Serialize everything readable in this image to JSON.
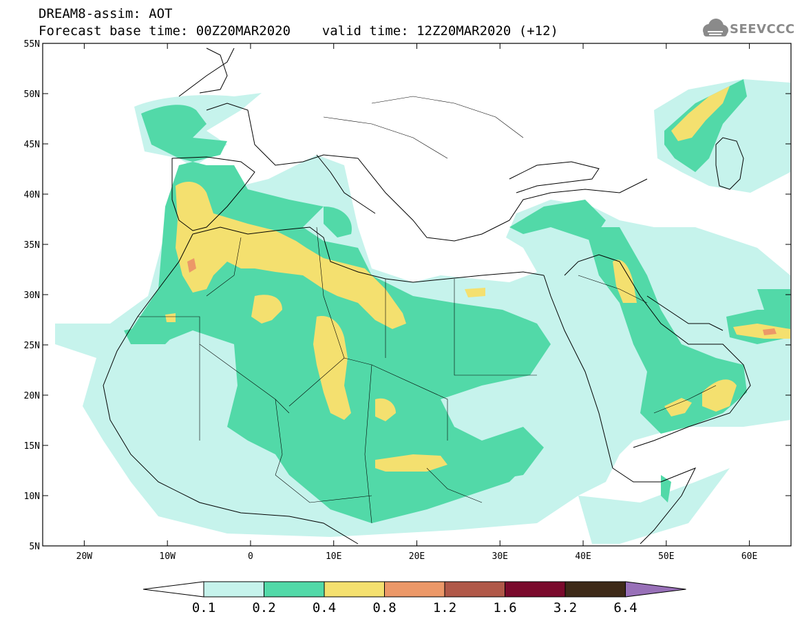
{
  "header": {
    "title_line1": "DREAM8-assim: AOT",
    "title_line2": "Forecast base time: 00Z20MAR2020    valid time: 12Z20MAR2020 (+12)",
    "logo_text": "SEEVCCC"
  },
  "icons": {
    "logo": "cloud-icon"
  },
  "map": {
    "lon_range": [
      -25,
      65
    ],
    "lat_range": [
      5,
      55
    ],
    "lon_ticks": [
      {
        "value": -20,
        "label": "20W"
      },
      {
        "value": -10,
        "label": "10W"
      },
      {
        "value": 0,
        "label": "0"
      },
      {
        "value": 10,
        "label": "10E"
      },
      {
        "value": 20,
        "label": "20E"
      },
      {
        "value": 30,
        "label": "30E"
      },
      {
        "value": 40,
        "label": "40E"
      },
      {
        "value": 50,
        "label": "50E"
      },
      {
        "value": 60,
        "label": "60E"
      }
    ],
    "lat_ticks": [
      {
        "value": 55,
        "label": "55N"
      },
      {
        "value": 50,
        "label": "50N"
      },
      {
        "value": 45,
        "label": "45N"
      },
      {
        "value": 40,
        "label": "40N"
      },
      {
        "value": 35,
        "label": "35N"
      },
      {
        "value": 30,
        "label": "30N"
      },
      {
        "value": 25,
        "label": "25N"
      },
      {
        "value": 20,
        "label": "20N"
      },
      {
        "value": 15,
        "label": "15N"
      },
      {
        "value": 10,
        "label": "10N"
      },
      {
        "value": 5,
        "label": "5N"
      }
    ]
  },
  "colorbar": {
    "colors": [
      "#c6f3ec",
      "#52d9a8",
      "#f4e06f",
      "#ec9868",
      "#b05848",
      "#7a0a2c",
      "#3e2a18"
    ],
    "under_color": "#ffffff",
    "over_color": "#9870b8",
    "labels": [
      "0.1",
      "0.2",
      "0.4",
      "0.8",
      "1.2",
      "1.6",
      "3.2",
      "6.4"
    ]
  }
}
